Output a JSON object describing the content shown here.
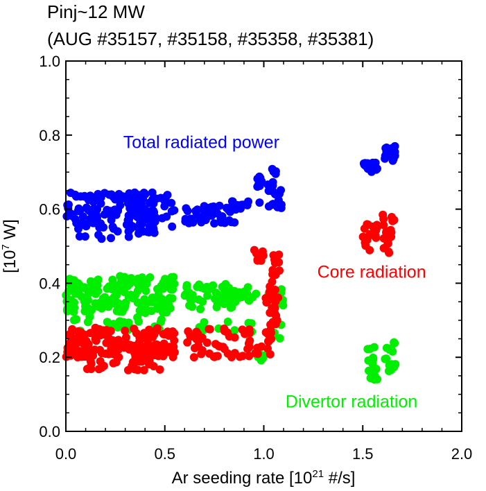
{
  "chart_data": {
    "type": "scatter",
    "title_line1": "Pinj~12 MW",
    "title_line2": "(AUG #35157, #35158, #35358, #35381)",
    "xlabel": {
      "text": "Ar seeding rate [10",
      "sup": "21",
      "after": " #/s]"
    },
    "ylabel": {
      "text": "[10",
      "sup": "7",
      "after": " W]"
    },
    "xlim": [
      0.0,
      2.0
    ],
    "ylim": [
      0.0,
      1.0
    ],
    "x_ticks": [
      {
        "value": 0.0,
        "label": "0.0"
      },
      {
        "value": 0.5,
        "label": "0.5"
      },
      {
        "value": 1.0,
        "label": "1.0"
      },
      {
        "value": 1.5,
        "label": "1.5"
      },
      {
        "value": 2.0,
        "label": "2.0"
      }
    ],
    "y_ticks": [
      {
        "value": 0.0,
        "label": "0.0"
      },
      {
        "value": 0.2,
        "label": "0.2"
      },
      {
        "value": 0.4,
        "label": "0.4"
      },
      {
        "value": 0.6,
        "label": "0.6"
      },
      {
        "value": 0.8,
        "label": "0.8"
      },
      {
        "value": 1.0,
        "label": "1.0"
      }
    ],
    "grid": false,
    "annotations": [
      {
        "text": "Total radiated power",
        "color": "#0000ff",
        "x": 0.29,
        "y": 0.765
      },
      {
        "text": "Core radiation",
        "color": "#ff0000",
        "x": 1.27,
        "y": 0.415
      },
      {
        "text": "Divertor radiation",
        "color": "#00ee00",
        "x": 1.11,
        "y": 0.065
      }
    ],
    "series": [
      {
        "color": "#0000ff",
        "clusters": [
          {
            "x": [
              0.0,
              0.55
            ],
            "y": [
              0.55,
              0.645
            ],
            "n": 150
          },
          {
            "x": [
              0.05,
              0.45
            ],
            "y": [
              0.52,
              0.56
            ],
            "n": 22
          },
          {
            "x": [
              0.6,
              0.88
            ],
            "y": [
              0.56,
              0.61
            ],
            "n": 40
          },
          {
            "x": [
              0.8,
              1.1
            ],
            "y": [
              0.6,
              0.625
            ],
            "n": 20
          },
          {
            "x": [
              0.95,
              0.99
            ],
            "y": [
              0.66,
              0.69
            ],
            "n": 10
          },
          {
            "x": [
              1.02,
              1.09
            ],
            "y": [
              0.64,
              0.71
            ],
            "n": 14
          },
          {
            "x": [
              1.5,
              1.58
            ],
            "y": [
              0.7,
              0.73
            ],
            "n": 14
          },
          {
            "x": [
              1.6,
              1.67
            ],
            "y": [
              0.73,
              0.77
            ],
            "n": 14
          }
        ]
      },
      {
        "color": "#00ee00",
        "clusters": [
          {
            "x": [
              0.0,
              0.55
            ],
            "y": [
              0.32,
              0.42
            ],
            "n": 170
          },
          {
            "x": [
              0.02,
              0.5
            ],
            "y": [
              0.27,
              0.31
            ],
            "n": 26
          },
          {
            "x": [
              0.6,
              0.95
            ],
            "y": [
              0.33,
              0.4
            ],
            "n": 55
          },
          {
            "x": [
              0.75,
              1.1
            ],
            "y": [
              0.36,
              0.385
            ],
            "n": 20
          },
          {
            "x": [
              0.65,
              0.95
            ],
            "y": [
              0.26,
              0.3
            ],
            "n": 14
          },
          {
            "x": [
              0.97,
              1.0
            ],
            "y": [
              0.19,
              0.21
            ],
            "n": 6
          },
          {
            "x": [
              1.05,
              1.1
            ],
            "y": [
              0.25,
              0.38
            ],
            "n": 10
          },
          {
            "x": [
              1.52,
              1.58
            ],
            "y": [
              0.14,
              0.23
            ],
            "n": 14
          },
          {
            "x": [
              1.6,
              1.67
            ],
            "y": [
              0.16,
              0.245
            ],
            "n": 14
          }
        ]
      },
      {
        "color": "#ff0000",
        "clusters": [
          {
            "x": [
              0.0,
              0.55
            ],
            "y": [
              0.2,
              0.28
            ],
            "n": 170
          },
          {
            "x": [
              0.05,
              0.5
            ],
            "y": [
              0.165,
              0.19
            ],
            "n": 25
          },
          {
            "x": [
              0.6,
              1.05
            ],
            "y": [
              0.2,
              0.28
            ],
            "n": 60
          },
          {
            "x": [
              0.95,
              1.0
            ],
            "y": [
              0.46,
              0.49
            ],
            "n": 8
          },
          {
            "x": [
              1.03,
              1.08
            ],
            "y": [
              0.25,
              0.49
            ],
            "n": 30
          },
          {
            "x": [
              1.0,
              1.05
            ],
            "y": [
              0.32,
              0.38
            ],
            "n": 8
          },
          {
            "x": [
              1.5,
              1.58
            ],
            "y": [
              0.48,
              0.57
            ],
            "n": 18
          },
          {
            "x": [
              1.6,
              1.66
            ],
            "y": [
              0.48,
              0.6
            ],
            "n": 20
          }
        ]
      }
    ]
  }
}
